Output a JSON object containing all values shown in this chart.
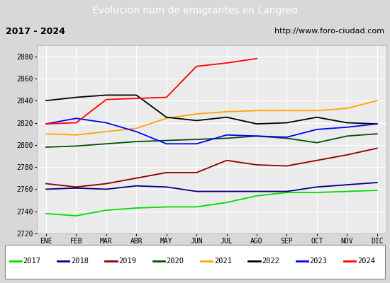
{
  "title": "Evolucion num de emigrantes en Langreo",
  "subtitle_left": "2017 - 2024",
  "subtitle_right": "http://www.foro-ciudad.com",
  "ylim": [
    2720,
    2890
  ],
  "yticks": [
    2720,
    2740,
    2760,
    2780,
    2800,
    2820,
    2840,
    2860,
    2880
  ],
  "months": [
    "ENE",
    "FEB",
    "MAR",
    "ABR",
    "MAY",
    "JUN",
    "JUL",
    "AGO",
    "SEP",
    "OCT",
    "NOV",
    "DIC"
  ],
  "title_bg_color": "#5b7fcb",
  "subtitle_bg_color": "#e8e8e8",
  "plot_bg_color": "#ebebeb",
  "outer_bg_color": "#d8d8d8",
  "legend_bg_color": "#ffffff",
  "series": {
    "2017": {
      "color": "#00dd00",
      "values": [
        2738,
        2736,
        2741,
        2743,
        2744,
        2744,
        2748,
        2754,
        2757,
        2757,
        2758,
        2759
      ]
    },
    "2018": {
      "color": "#00007f",
      "values": [
        2760,
        2761,
        2760,
        2763,
        2762,
        2758,
        2758,
        2758,
        2758,
        2762,
        2764,
        2766
      ]
    },
    "2019": {
      "color": "#8b0000",
      "values": [
        2765,
        2762,
        2765,
        2770,
        2775,
        2775,
        2786,
        2782,
        2781,
        2786,
        2791,
        2797
      ]
    },
    "2020": {
      "color": "#005000",
      "values": [
        2798,
        2799,
        2801,
        2803,
        2804,
        2805,
        2806,
        2808,
        2806,
        2802,
        2808,
        2810
      ]
    },
    "2021": {
      "color": "#ffa500",
      "values": [
        2810,
        2809,
        2812,
        2815,
        2824,
        2828,
        2830,
        2831,
        2831,
        2831,
        2833,
        2840
      ]
    },
    "2022": {
      "color": "#000000",
      "values": [
        2840,
        2843,
        2845,
        2845,
        2825,
        2822,
        2825,
        2819,
        2820,
        2825,
        2820,
        2819
      ]
    },
    "2023": {
      "color": "#0000ff",
      "values": [
        2819,
        2824,
        2820,
        2812,
        2801,
        2801,
        2809,
        2808,
        2807,
        2814,
        2816,
        2819
      ]
    },
    "2024": {
      "color": "#ff0000",
      "values": [
        2819,
        2820,
        2841,
        2842,
        2843,
        2871,
        2874,
        2878,
        null,
        null,
        null,
        null
      ]
    }
  }
}
